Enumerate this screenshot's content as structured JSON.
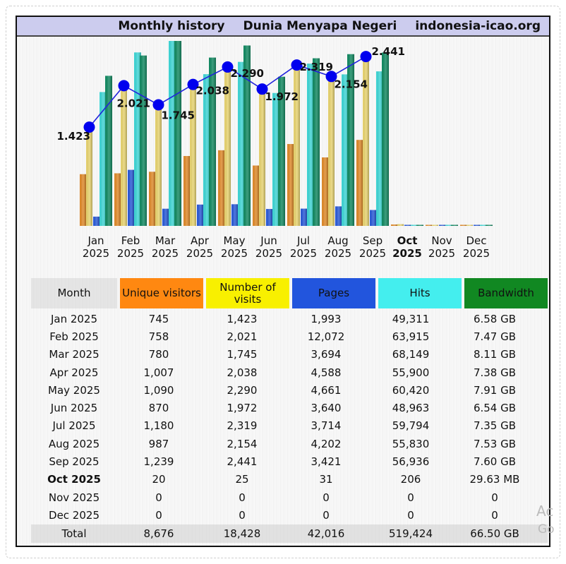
{
  "header": {
    "title": "Monthly history",
    "site_name": "Dunia Menyapa Negeri",
    "domain": "indonesia-icao.org"
  },
  "colors": {
    "unique_visitors": "#ff8811",
    "visits": "#f8f000",
    "pages": "#2255dd",
    "hits": "#44eeee",
    "bandwidth": "#118833",
    "header_bg": "#ccccee",
    "line": "#0000ee"
  },
  "chart_data": {
    "type": "bar",
    "title": "Monthly history",
    "categories": [
      {
        "month": "Jan",
        "year": "2025",
        "current": false
      },
      {
        "month": "Feb",
        "year": "2025",
        "current": false
      },
      {
        "month": "Mar",
        "year": "2025",
        "current": false
      },
      {
        "month": "Apr",
        "year": "2025",
        "current": false
      },
      {
        "month": "May",
        "year": "2025",
        "current": false
      },
      {
        "month": "Jun",
        "year": "2025",
        "current": false
      },
      {
        "month": "Jul",
        "year": "2025",
        "current": false
      },
      {
        "month": "Aug",
        "year": "2025",
        "current": false
      },
      {
        "month": "Sep",
        "year": "2025",
        "current": false
      },
      {
        "month": "Oct",
        "year": "2025",
        "current": true
      },
      {
        "month": "Nov",
        "year": "2025",
        "current": false
      },
      {
        "month": "Dec",
        "year": "2025",
        "current": false
      }
    ],
    "series": [
      {
        "name": "Unique visitors",
        "color": "#e08a2a",
        "values": [
          745,
          758,
          780,
          1007,
          1090,
          870,
          1180,
          987,
          1239,
          20,
          0,
          0
        ]
      },
      {
        "name": "Number of visits",
        "color": "#e8d470",
        "values": [
          1423,
          2021,
          1745,
          2038,
          2290,
          1972,
          2319,
          2154,
          2441,
          25,
          0,
          0
        ]
      },
      {
        "name": "Pages",
        "color": "#2a5ad8",
        "values": [
          1993,
          12072,
          3694,
          4588,
          4661,
          3640,
          3714,
          4202,
          3421,
          31,
          0,
          0
        ]
      },
      {
        "name": "Hits",
        "color": "#3fd6d6",
        "values": [
          49311,
          63915,
          68149,
          55900,
          60420,
          48963,
          59794,
          55830,
          56936,
          206,
          0,
          0
        ]
      },
      {
        "name": "Bandwidth (GB)",
        "color": "#138a62",
        "values": [
          6.58,
          7.47,
          8.11,
          7.38,
          7.91,
          6.54,
          7.35,
          7.53,
          7.6,
          0.029,
          0,
          0
        ]
      }
    ],
    "line_series": {
      "name": "Number of visits",
      "labels": [
        "1.423",
        "2.021",
        "1.745",
        "2.038",
        "2.290",
        "1.972",
        "2.319",
        "2.154",
        "2.441"
      ],
      "values": [
        1423,
        2021,
        1745,
        2038,
        2290,
        1972,
        2319,
        2154,
        2441
      ]
    },
    "grid": false,
    "legend": "none"
  },
  "table": {
    "headers": [
      "Month",
      "Unique visitors",
      "Number of visits",
      "Pages",
      "Hits",
      "Bandwidth"
    ],
    "rows": [
      {
        "month": "Jan 2025",
        "unique": "745",
        "visits": "1,423",
        "pages": "1,993",
        "hits": "49,311",
        "bandwidth": "6.58 GB",
        "current": false
      },
      {
        "month": "Feb 2025",
        "unique": "758",
        "visits": "2,021",
        "pages": "12,072",
        "hits": "63,915",
        "bandwidth": "7.47 GB",
        "current": false
      },
      {
        "month": "Mar 2025",
        "unique": "780",
        "visits": "1,745",
        "pages": "3,694",
        "hits": "68,149",
        "bandwidth": "8.11 GB",
        "current": false
      },
      {
        "month": "Apr 2025",
        "unique": "1,007",
        "visits": "2,038",
        "pages": "4,588",
        "hits": "55,900",
        "bandwidth": "7.38 GB",
        "current": false
      },
      {
        "month": "May 2025",
        "unique": "1,090",
        "visits": "2,290",
        "pages": "4,661",
        "hits": "60,420",
        "bandwidth": "7.91 GB",
        "current": false
      },
      {
        "month": "Jun 2025",
        "unique": "870",
        "visits": "1,972",
        "pages": "3,640",
        "hits": "48,963",
        "bandwidth": "6.54 GB",
        "current": false
      },
      {
        "month": "Jul 2025",
        "unique": "1,180",
        "visits": "2,319",
        "pages": "3,714",
        "hits": "59,794",
        "bandwidth": "7.35 GB",
        "current": false
      },
      {
        "month": "Aug 2025",
        "unique": "987",
        "visits": "2,154",
        "pages": "4,202",
        "hits": "55,830",
        "bandwidth": "7.53 GB",
        "current": false
      },
      {
        "month": "Sep 2025",
        "unique": "1,239",
        "visits": "2,441",
        "pages": "3,421",
        "hits": "56,936",
        "bandwidth": "7.60 GB",
        "current": false
      },
      {
        "month": "Oct 2025",
        "unique": "20",
        "visits": "25",
        "pages": "31",
        "hits": "206",
        "bandwidth": "29.63 MB",
        "current": true
      },
      {
        "month": "Nov 2025",
        "unique": "0",
        "visits": "0",
        "pages": "0",
        "hits": "0",
        "bandwidth": "0",
        "current": false
      },
      {
        "month": "Dec 2025",
        "unique": "0",
        "visits": "0",
        "pages": "0",
        "hits": "0",
        "bandwidth": "0",
        "current": false
      }
    ],
    "total": {
      "month": "Total",
      "unique": "8,676",
      "visits": "18,428",
      "pages": "42,016",
      "hits": "519,424",
      "bandwidth": "66.50 GB"
    }
  },
  "watermark": {
    "line1": "Ac",
    "line2": "Go"
  }
}
